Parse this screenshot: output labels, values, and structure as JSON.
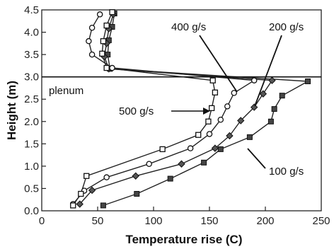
{
  "chart_data": {
    "type": "line",
    "xlabel": "Temperature rise (C)",
    "ylabel": "Height (m)",
    "xlim": [
      0,
      250
    ],
    "ylim": [
      0,
      4.5
    ],
    "x_ticks": [
      "0",
      "50",
      "100",
      "150",
      "200",
      "250"
    ],
    "y_ticks": [
      "0.0",
      "0.5",
      "1.0",
      "1.5",
      "2.0",
      "2.5",
      "3.0",
      "3.5",
      "4.0",
      "4.5"
    ],
    "grid": false,
    "reference_line_y": 3.0,
    "annotations": [
      "plenum",
      "400 g/s",
      "200 g/s",
      "500 g/s",
      "100 g/s"
    ],
    "series": [
      {
        "name": "100 g/s",
        "marker": "filled-square",
        "points": [
          [
            55,
            0.12
          ],
          [
            85,
            0.38
          ],
          [
            115,
            0.72
          ],
          [
            145,
            1.08
          ],
          [
            160,
            1.38
          ],
          [
            186,
            1.65
          ],
          [
            205,
            2.0
          ],
          [
            208,
            2.28
          ],
          [
            215,
            2.58
          ],
          [
            238,
            2.9
          ],
          [
            61,
            3.18
          ],
          [
            59,
            3.5
          ],
          [
            60,
            3.82
          ],
          [
            63,
            4.12
          ],
          [
            65,
            4.42
          ]
        ]
      },
      {
        "name": "200 g/s",
        "marker": "filled-diamond",
        "points": [
          [
            34,
            0.15
          ],
          [
            45,
            0.46
          ],
          [
            84,
            0.78
          ],
          [
            125,
            1.05
          ],
          [
            155,
            1.4
          ],
          [
            168,
            1.68
          ],
          [
            178,
            2.02
          ],
          [
            190,
            2.32
          ],
          [
            198,
            2.62
          ],
          [
            206,
            2.92
          ],
          [
            60,
            3.18
          ],
          [
            56,
            3.45
          ],
          [
            58,
            3.75
          ],
          [
            60,
            4.08
          ],
          [
            64,
            4.4
          ]
        ]
      },
      {
        "name": "400 g/s",
        "marker": "open-circle",
        "points": [
          [
            28,
            0.15
          ],
          [
            38,
            0.45
          ],
          [
            58,
            0.75
          ],
          [
            96,
            1.05
          ],
          [
            133,
            1.4
          ],
          [
            150,
            1.72
          ],
          [
            160,
            2.04
          ],
          [
            166,
            2.34
          ],
          [
            172,
            2.64
          ],
          [
            190,
            2.92
          ],
          [
            63,
            3.2
          ],
          [
            45,
            3.5
          ],
          [
            42,
            3.8
          ],
          [
            45,
            4.1
          ],
          [
            52,
            4.4
          ]
        ]
      },
      {
        "name": "500 g/s",
        "marker": "open-square",
        "points": [
          [
            28,
            0.12
          ],
          [
            35,
            0.38
          ],
          [
            40,
            0.78
          ],
          [
            108,
            1.38
          ],
          [
            140,
            1.7
          ],
          [
            149,
            2.0
          ],
          [
            152,
            2.3
          ],
          [
            155,
            2.65
          ],
          [
            153,
            2.92
          ],
          [
            58,
            3.2
          ],
          [
            54,
            3.52
          ],
          [
            55,
            3.8
          ],
          [
            58,
            4.15
          ],
          [
            63,
            4.45
          ]
        ]
      }
    ]
  }
}
